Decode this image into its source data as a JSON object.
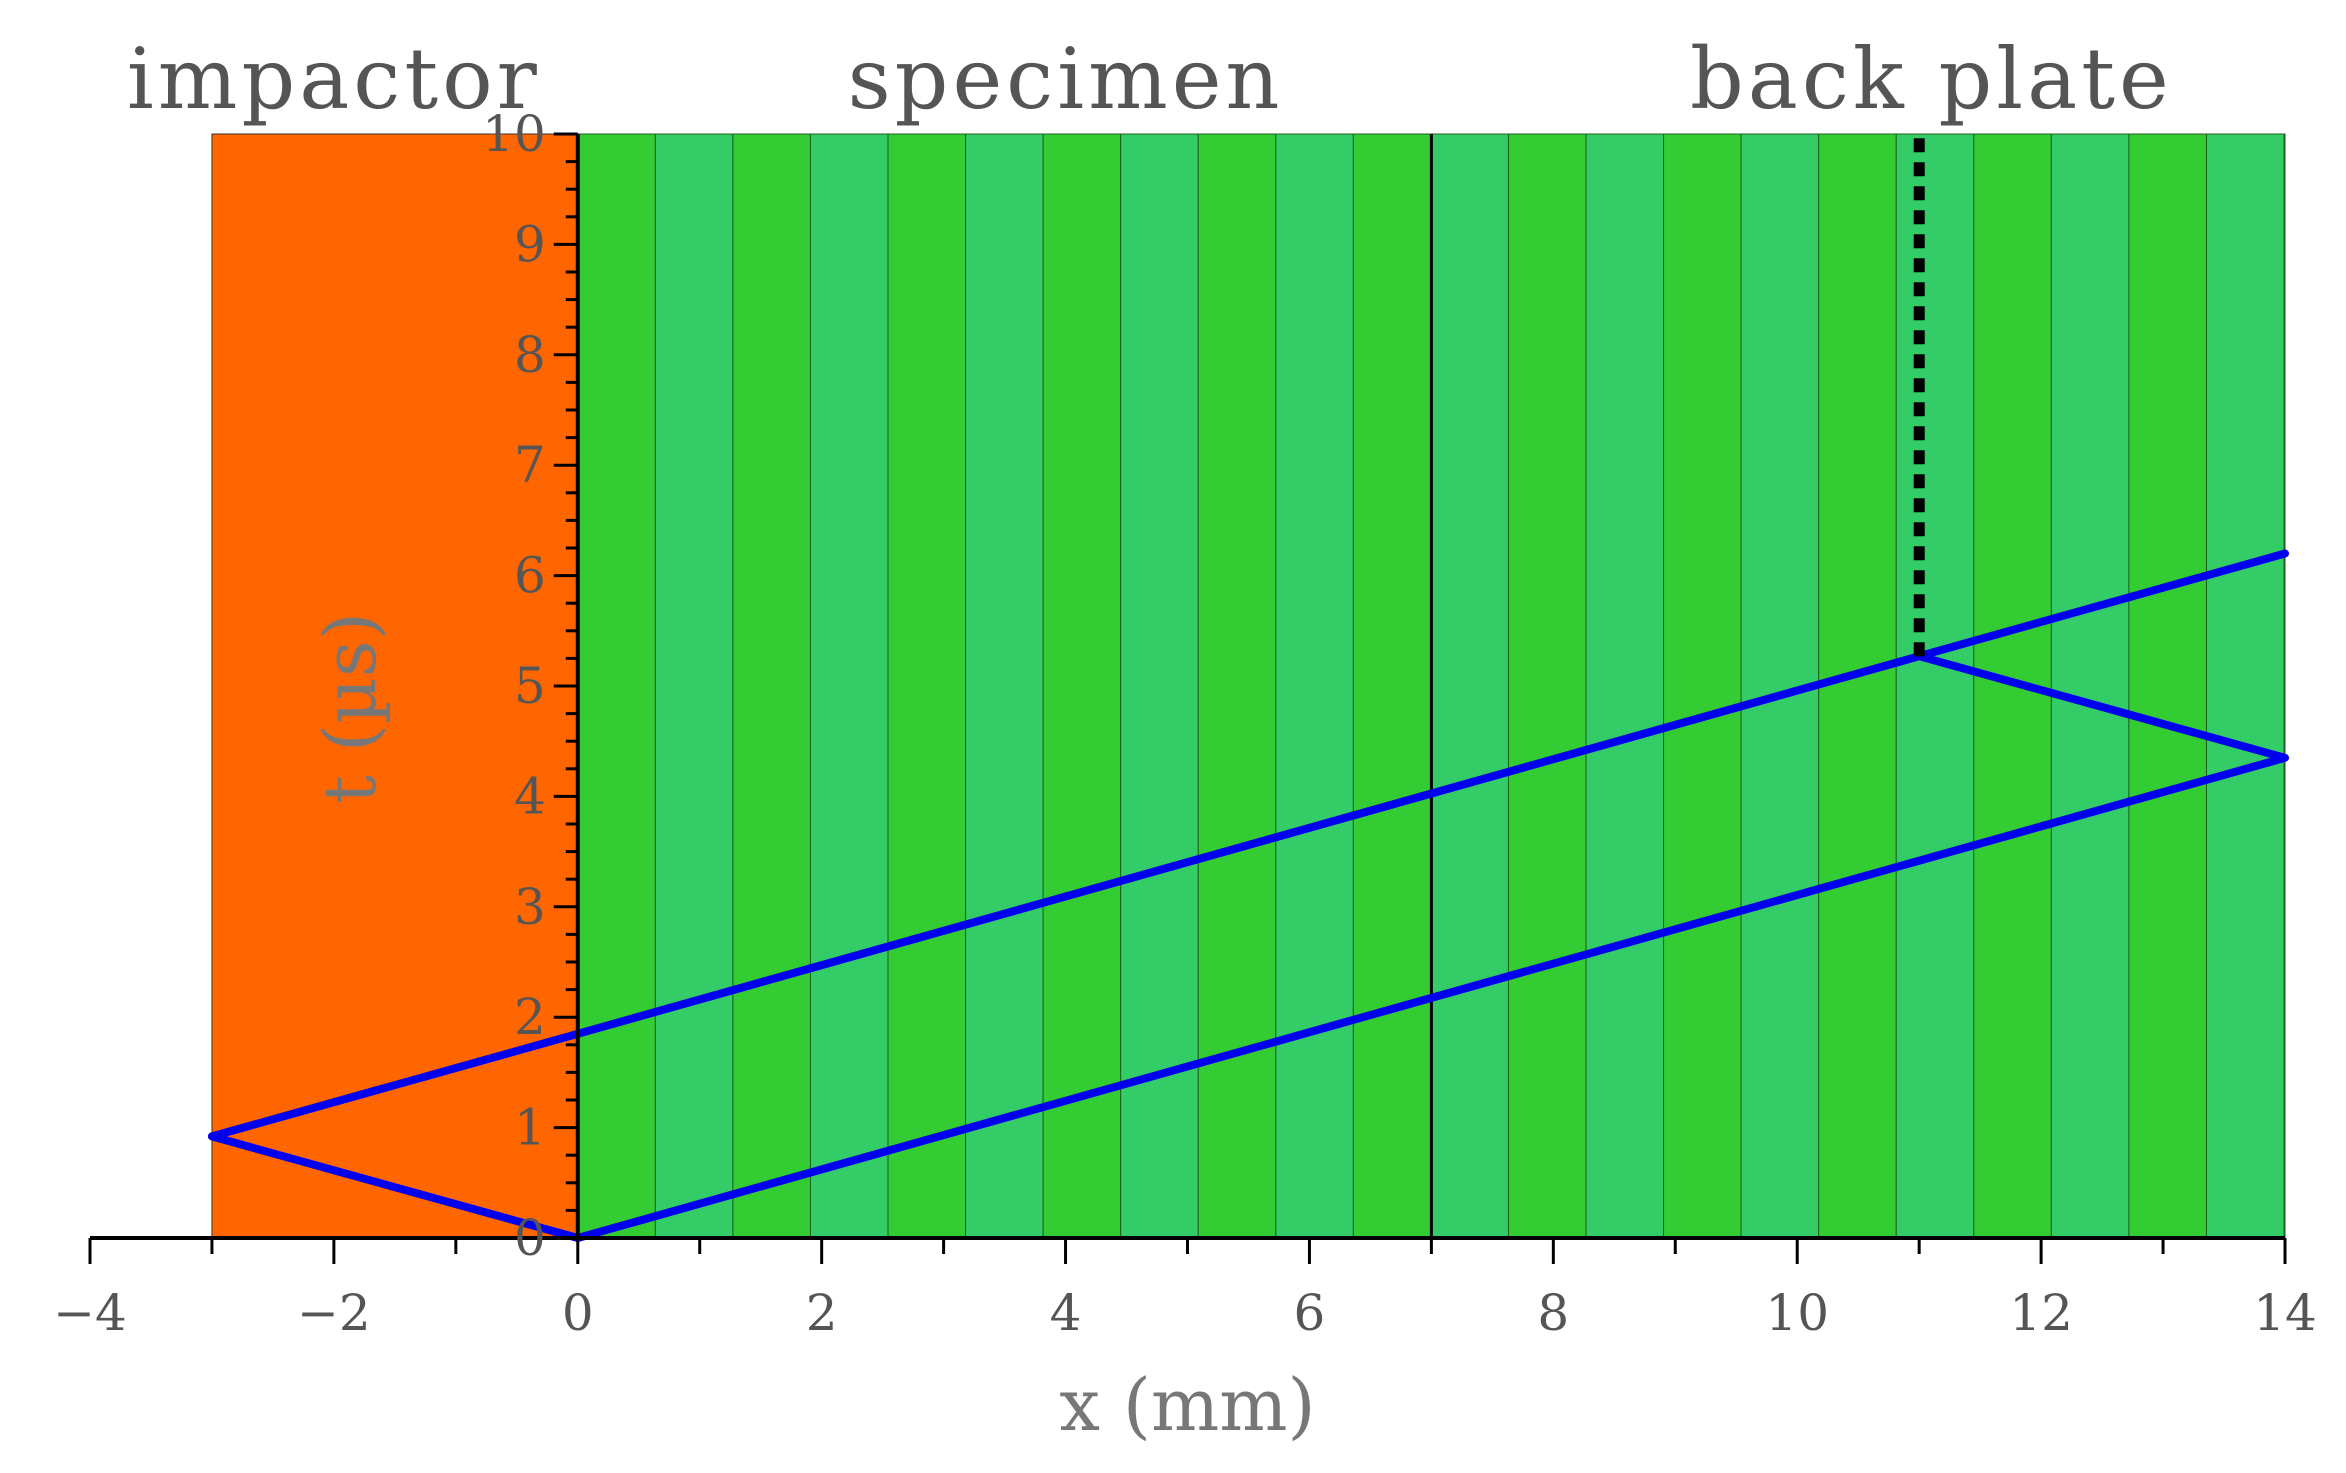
{
  "chart_data": {
    "type": "line",
    "title": "",
    "xlabel": "x  (mm)",
    "ylabel": "t  (µs)",
    "xlim": [
      -4,
      14
    ],
    "ylim": [
      0,
      10
    ],
    "x_ticks": [
      -4,
      -2,
      0,
      2,
      4,
      6,
      8,
      10,
      12,
      14
    ],
    "y_ticks": [
      0,
      1,
      2,
      3,
      4,
      5,
      6,
      7,
      8,
      9,
      10
    ],
    "grid": false,
    "regions": [
      {
        "label": "impactor",
        "x_range": [
          -3,
          0
        ],
        "color": "#ff6600"
      },
      {
        "label": "specimen",
        "x_range": [
          0,
          7
        ],
        "color": "#33cc33"
      },
      {
        "label": "back  plate",
        "x_range": [
          7,
          14
        ],
        "color": "#33cc66"
      }
    ],
    "stripe_colors": [
      "#33cc33",
      "#33cc66"
    ],
    "stripe_width_mm": 0.636,
    "interface_x": 7,
    "series": [
      {
        "color": "#0000ee",
        "style": "solid",
        "x": [
          0,
          -3,
          0,
          11,
          14
        ],
        "y": [
          0,
          0.92,
          1.85,
          5.27,
          6.2
        ]
      },
      {
        "color": "#0000ee",
        "style": "solid",
        "x": [
          0,
          14,
          11
        ],
        "y": [
          0,
          4.35,
          5.27
        ]
      },
      {
        "color": "#000000",
        "style": "dashed",
        "x": [
          11,
          11
        ],
        "y": [
          5.27,
          10
        ]
      }
    ]
  }
}
